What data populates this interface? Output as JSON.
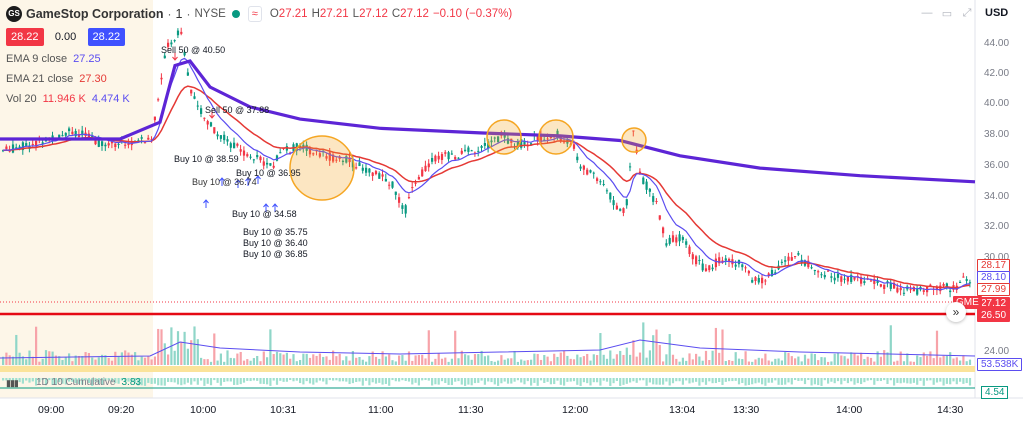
{
  "header": {
    "symbol_title": "GameStop Corporation",
    "interval": "1",
    "exchange": "NYSE",
    "ohlc": {
      "o_label": "O",
      "o_value": "27.21",
      "h_label": "H",
      "h_value": "27.21",
      "l_label": "L",
      "l_value": "27.12",
      "c_label": "C",
      "c_value": "27.12",
      "change": "−0.10 (−0.37%)"
    }
  },
  "quote": {
    "bid": "28.22",
    "spread": "0.00",
    "ask": "28.22"
  },
  "indicators": [
    {
      "label": "EMA 9 close",
      "value": "27.25",
      "color": "#5b4df0"
    },
    {
      "label": "EMA 21 close",
      "value": "27.30",
      "color": "#e53935"
    },
    {
      "label": "Vol 20",
      "value": "11.946 K",
      "value2": "4.474 K",
      "color": "#f23645",
      "color2": "#5b4df0"
    }
  ],
  "toolbar": {
    "currency": "USD"
  },
  "price_axis": {
    "labels": [
      "44.00",
      "42.00",
      "40.00",
      "38.00",
      "36.00",
      "34.00",
      "32.00",
      "30.00"
    ],
    "tags": [
      {
        "text": "28.17",
        "bg": "#ffffff",
        "fg": "#e53935",
        "border": "#e53935"
      },
      {
        "text": "28.10",
        "bg": "#ffffff",
        "fg": "#5b4df0",
        "border": "#5b4df0"
      },
      {
        "text": "27.99",
        "bg": "#ffffff",
        "fg": "#e53935",
        "border": "#e53935"
      },
      {
        "text": "27.12",
        "bg": "#f23645",
        "fg": "#ffffff",
        "border": "#f23645"
      },
      {
        "text": "26.50",
        "bg": "#f23645",
        "fg": "#ffffff",
        "border": "#f23645"
      }
    ],
    "gme_tag": "GME",
    "vol_label": "24.00",
    "vol_tag": "53.538K"
  },
  "time_axis": [
    "09:00",
    "09:20",
    "10:00",
    "10:31",
    "11:00",
    "11:30",
    "12:00",
    "13:04",
    "13:30",
    "14:00",
    "14:30"
  ],
  "annotations": [
    "Sell 50 @ 40.50",
    "Sell 50 @ 37.88",
    "Buy 10 @ 38.59",
    "Buy 10 @ 36.95",
    "Buy 10 @ 36.74",
    "Buy 10 @ 34.58",
    "Buy 10 @ 35.75",
    "Buy 10 @ 36.40",
    "Buy 10 @ 36.85"
  ],
  "cumulative": {
    "label": "1D 10 Cumulative",
    "value": "3.83",
    "tag": "4.54"
  },
  "colors": {
    "up": "#089981",
    "down": "#f23645",
    "ema9": "#5b4df0",
    "ema21": "#e53935",
    "slow_ma": "#5d25d6",
    "support": "#e50914",
    "premarket": "#fdf6e8",
    "circle": "#f5a623"
  }
}
